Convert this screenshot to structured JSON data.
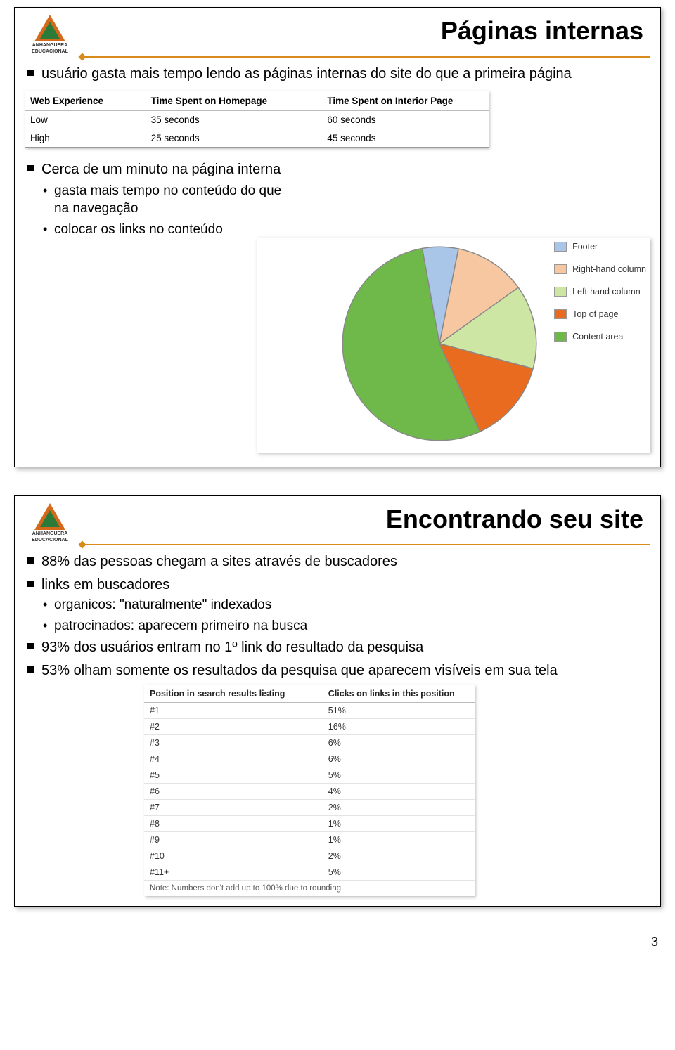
{
  "logo": {
    "line1": "ANHANGUERA",
    "line2": "EDUCACIONAL"
  },
  "slide1": {
    "title": "Páginas internas",
    "bullets": [
      "usuário gasta mais tempo lendo as páginas internas do site do que a primeira página"
    ],
    "table": {
      "columns": [
        "Web Experience",
        "Time Spent on Homepage",
        "Time Spent on Interior Page"
      ],
      "col_widths": [
        "26%",
        "38%",
        "36%"
      ],
      "rows": [
        [
          "Low",
          "35 seconds",
          "60 seconds"
        ],
        [
          "High",
          "25 seconds",
          "45 seconds"
        ]
      ]
    },
    "bullets2_heading": "Cerca de um minuto na página interna",
    "sub_bullets": [
      "gasta mais tempo no conteúdo do que na navegação",
      "colocar os links no conteúdo"
    ],
    "pie": {
      "type": "pie",
      "slices": [
        {
          "label": "Footer",
          "value": 6,
          "color": "#a9c6e8"
        },
        {
          "label": "Right-hand column",
          "value": 12,
          "color": "#f6c7a0"
        },
        {
          "label": "Left-hand column",
          "value": 14,
          "color": "#cde6a3"
        },
        {
          "label": "Top of page",
          "value": 14,
          "color": "#e86b1f"
        },
        {
          "label": "Content area",
          "value": 54,
          "color": "#6fb94a"
        }
      ],
      "stroke_color": "#888888",
      "stroke_width": 1,
      "background_color": "#ffffff"
    }
  },
  "slide2": {
    "title": "Encontrando seu site",
    "bullets": [
      "88% das pessoas chegam a sites através de buscadores",
      "links em buscadores"
    ],
    "sub_bullets": [
      "organicos: \"naturalmente\" indexados",
      "patrocinados: aparecem primeiro na busca"
    ],
    "bullets_after": [
      "93% dos usuários entram no 1º link do resultado da pesquisa",
      "53% olham somente os resultados da pesquisa  que aparecem visíveis em sua tela"
    ],
    "results_table": {
      "columns": [
        "Position in search results listing",
        "Clicks on links in this position"
      ],
      "col_widths": [
        "54%",
        "46%"
      ],
      "rows": [
        [
          "#1",
          "51%"
        ],
        [
          "#2",
          "16%"
        ],
        [
          "#3",
          "6%"
        ],
        [
          "#4",
          "6%"
        ],
        [
          "#5",
          "5%"
        ],
        [
          "#6",
          "4%"
        ],
        [
          "#7",
          "2%"
        ],
        [
          "#8",
          "1%"
        ],
        [
          "#9",
          "1%"
        ],
        [
          "#10",
          "2%"
        ],
        [
          "#11+",
          "5%"
        ]
      ],
      "note": "Note: Numbers don't add up to 100% due to rounding."
    }
  },
  "page_number": "3"
}
